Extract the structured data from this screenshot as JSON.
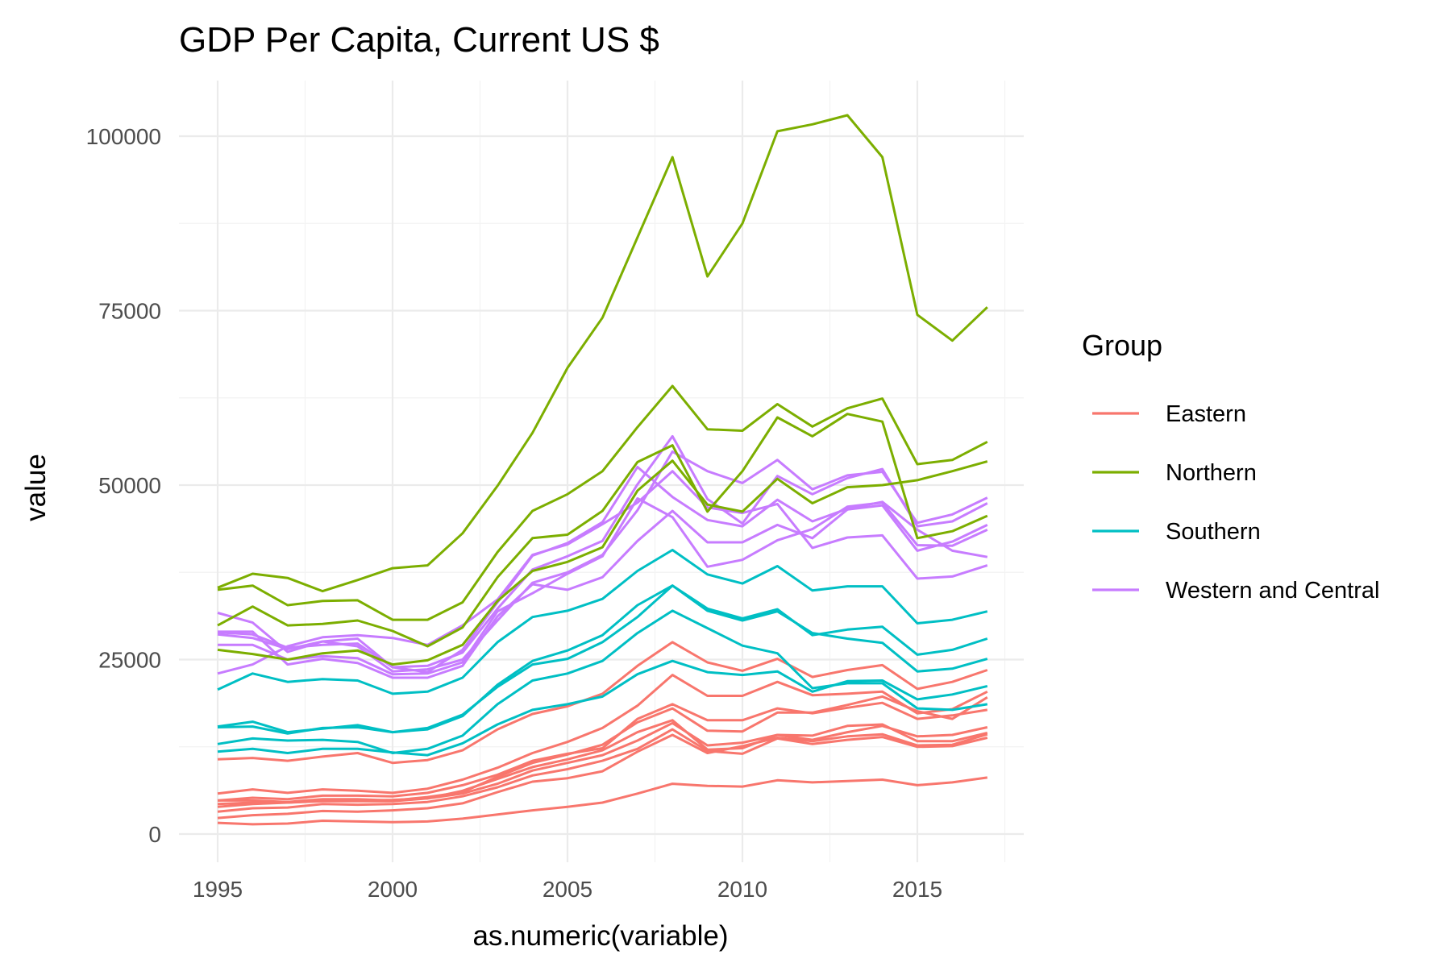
{
  "chart_data": {
    "type": "line",
    "title": "GDP Per Capita, Current US $",
    "xlabel": "as.numeric(variable)",
    "ylabel": "value",
    "xlim": [
      1995,
      2017
    ],
    "ylim": [
      0,
      105000
    ],
    "x_ticks": [
      1995,
      2000,
      2005,
      2010,
      2015
    ],
    "y_ticks": [
      0,
      25000,
      50000,
      75000,
      100000
    ],
    "grid": true,
    "legend": {
      "title": "Group",
      "position": "right",
      "entries": [
        "Eastern",
        "Northern",
        "Southern",
        "Western and Central"
      ]
    },
    "colors": {
      "Eastern": "#F8766D",
      "Northern": "#7CAE00",
      "Southern": "#00BFC4",
      "Western and Central": "#C77CFF"
    },
    "x": [
      1995,
      1996,
      1997,
      1998,
      1999,
      2000,
      2001,
      2002,
      2003,
      2004,
      2005,
      2006,
      2007,
      2008,
      2009,
      2010,
      2011,
      2012,
      2013,
      2014,
      2015,
      2016,
      2017
    ],
    "series": [
      {
        "group": "Northern",
        "values": [
          35000,
          35600,
          32800,
          33400,
          33500,
          30700,
          30700,
          33200,
          40400,
          46300,
          48700,
          52000,
          58300,
          64200,
          58000,
          57800,
          61600,
          58400,
          61000,
          62400,
          53000,
          53600,
          56200
        ]
      },
      {
        "group": "Northern",
        "values": [
          35300,
          37300,
          36700,
          34800,
          36400,
          38100,
          38500,
          43100,
          49900,
          57500,
          66800,
          74000,
          85500,
          97000,
          79900,
          87500,
          100700,
          101700,
          103000,
          97000,
          74400,
          70700,
          75500
        ]
      },
      {
        "group": "Northern",
        "values": [
          29900,
          32600,
          29900,
          30100,
          30600,
          29100,
          26900,
          29600,
          36800,
          42400,
          42900,
          46300,
          53300,
          55700,
          46200,
          52000,
          59700,
          57000,
          60200,
          59100,
          42400,
          43400,
          45600
        ]
      },
      {
        "group": "Northern",
        "values": [
          26400,
          25800,
          25000,
          25900,
          26300,
          24300,
          24900,
          27100,
          33400,
          37700,
          39000,
          41100,
          49200,
          53500,
          47200,
          46200,
          50900,
          47400,
          49700,
          50000,
          50700,
          52000,
          53400
        ]
      },
      {
        "group": "Western and Central",
        "values": [
          31700,
          30300,
          26100,
          27600,
          26900,
          23300,
          23600,
          25000,
          30600,
          36000,
          37500,
          40000,
          46400,
          54800,
          52000,
          50300,
          53600,
          49400,
          51400,
          51900,
          44600,
          45800,
          48200
        ]
      },
      {
        "group": "Western and Central",
        "values": [
          28900,
          28600,
          26700,
          27100,
          27300,
          23900,
          24100,
          26000,
          32300,
          37900,
          39800,
          42000,
          50100,
          57000,
          48000,
          44500,
          51300,
          48700,
          51000,
          52300,
          44100,
          44800,
          47400
        ]
      },
      {
        "group": "Western and Central",
        "values": [
          29000,
          29000,
          24300,
          25100,
          24500,
          22400,
          22400,
          24100,
          31200,
          35800,
          35000,
          36800,
          42000,
          46300,
          41800,
          41800,
          44300,
          42400,
          46500,
          47100,
          40600,
          41900,
          44300
        ]
      },
      {
        "group": "Western and Central",
        "values": [
          27100,
          27100,
          25000,
          25500,
          25200,
          22900,
          23000,
          24600,
          31900,
          34500,
          37300,
          39800,
          48100,
          45400,
          38300,
          39300,
          42100,
          43700,
          46900,
          47500,
          41400,
          41300,
          43600
        ]
      },
      {
        "group": "Western and Central",
        "values": [
          23000,
          24300,
          26900,
          28200,
          28500,
          28100,
          27100,
          29900,
          33600,
          40000,
          41500,
          44400,
          47500,
          52000,
          46800,
          46000,
          47300,
          41000,
          42500,
          42800,
          36600,
          36900,
          38500
        ]
      },
      {
        "group": "Western and Central",
        "values": [
          28600,
          28100,
          26500,
          27600,
          28000,
          23900,
          23200,
          26400,
          33200,
          39900,
          41700,
          44700,
          52600,
          48300,
          45000,
          44100,
          47900,
          44800,
          46600,
          47600,
          43600,
          40600,
          39700
        ]
      },
      {
        "group": "Southern",
        "values": [
          20700,
          23000,
          21800,
          22200,
          22000,
          20100,
          20400,
          22400,
          27500,
          31100,
          32000,
          33700,
          37700,
          40700,
          37200,
          35900,
          38400,
          34900,
          35500,
          35500,
          30200,
          30700,
          31900
        ]
      },
      {
        "group": "Southern",
        "values": [
          15300,
          15400,
          14400,
          15200,
          15300,
          14600,
          15000,
          16900,
          21400,
          24800,
          26300,
          28500,
          32800,
          35600,
          32300,
          30900,
          32200,
          28500,
          29300,
          29700,
          25700,
          26400,
          28000
        ]
      },
      {
        "group": "Southern",
        "values": [
          15400,
          16100,
          14600,
          15100,
          15600,
          14600,
          15200,
          17100,
          21100,
          24300,
          25100,
          27500,
          31100,
          35600,
          32000,
          30600,
          31900,
          28800,
          28000,
          27400,
          23300,
          23700,
          25100
        ]
      },
      {
        "group": "Southern",
        "values": [
          12900,
          13700,
          13400,
          13500,
          13200,
          11600,
          12200,
          14100,
          18600,
          22000,
          23000,
          24800,
          28800,
          32000,
          29500,
          27000,
          25900,
          20900,
          21600,
          21600,
          18000,
          17800,
          18600
        ]
      },
      {
        "group": "Southern",
        "values": [
          11800,
          12200,
          11600,
          12200,
          12200,
          11700,
          11300,
          13000,
          15700,
          17800,
          18600,
          19700,
          22900,
          24800,
          23200,
          22800,
          23300,
          20400,
          21900,
          22000,
          19300,
          20000,
          21200
        ]
      },
      {
        "group": "Eastern",
        "values": [
          10700,
          10900,
          10500,
          11100,
          11600,
          10200,
          10600,
          12000,
          15000,
          17200,
          18300,
          20100,
          24100,
          27500,
          24600,
          23400,
          25100,
          22500,
          23500,
          24200,
          20800,
          21800,
          23500
        ]
      },
      {
        "group": "Eastern",
        "values": [
          5800,
          6400,
          5900,
          6400,
          6200,
          5900,
          6500,
          7800,
          9500,
          11600,
          13200,
          15200,
          18400,
          22800,
          19800,
          19800,
          21800,
          19900,
          20100,
          20400,
          17300,
          17900,
          20400
        ]
      },
      {
        "group": "Eastern",
        "values": [
          4800,
          5200,
          5000,
          5500,
          5500,
          5400,
          5900,
          7000,
          8500,
          10500,
          11500,
          12300,
          16500,
          18600,
          16300,
          16300,
          18000,
          17300,
          18100,
          18800,
          16500,
          17000,
          17800
        ]
      },
      {
        "group": "Eastern",
        "values": [
          4800,
          4800,
          4600,
          5000,
          5000,
          4800,
          5300,
          6000,
          8200,
          10200,
          11400,
          12800,
          16000,
          18000,
          14800,
          14700,
          17400,
          17400,
          18500,
          19700,
          17600,
          16500,
          19600
        ]
      },
      {
        "group": "Eastern",
        "values": [
          4300,
          4500,
          4500,
          4800,
          4800,
          4900,
          5100,
          6200,
          7900,
          9600,
          10700,
          12000,
          14600,
          16300,
          12100,
          12300,
          14200,
          13500,
          14600,
          15500,
          14000,
          14200,
          15300
        ]
      },
      {
        "group": "Eastern",
        "values": [
          3900,
          4300,
          4500,
          4700,
          4700,
          4700,
          5100,
          5800,
          7200,
          9100,
          10200,
          11300,
          13400,
          15900,
          12700,
          13100,
          14200,
          14100,
          15500,
          15700,
          13300,
          13300,
          14500
        ]
      },
      {
        "group": "Eastern",
        "values": [
          3200,
          3700,
          3800,
          4300,
          4200,
          4300,
          4600,
          5400,
          6700,
          8400,
          9300,
          10500,
          12200,
          15000,
          11900,
          11500,
          13700,
          12900,
          13500,
          13900,
          12500,
          12600,
          13800
        ]
      },
      {
        "group": "Eastern",
        "values": [
          2300,
          2700,
          2900,
          3300,
          3200,
          3400,
          3700,
          4400,
          6000,
          7500,
          8000,
          9000,
          11800,
          14200,
          11600,
          12600,
          13800,
          13300,
          14000,
          14300,
          12700,
          12800,
          14300
        ]
      },
      {
        "group": "Eastern",
        "values": [
          1600,
          1400,
          1500,
          1900,
          1800,
          1700,
          1800,
          2200,
          2800,
          3400,
          3900,
          4500,
          5800,
          7200,
          6900,
          6800,
          7700,
          7400,
          7600,
          7800,
          7000,
          7400,
          8100
        ]
      }
    ]
  }
}
